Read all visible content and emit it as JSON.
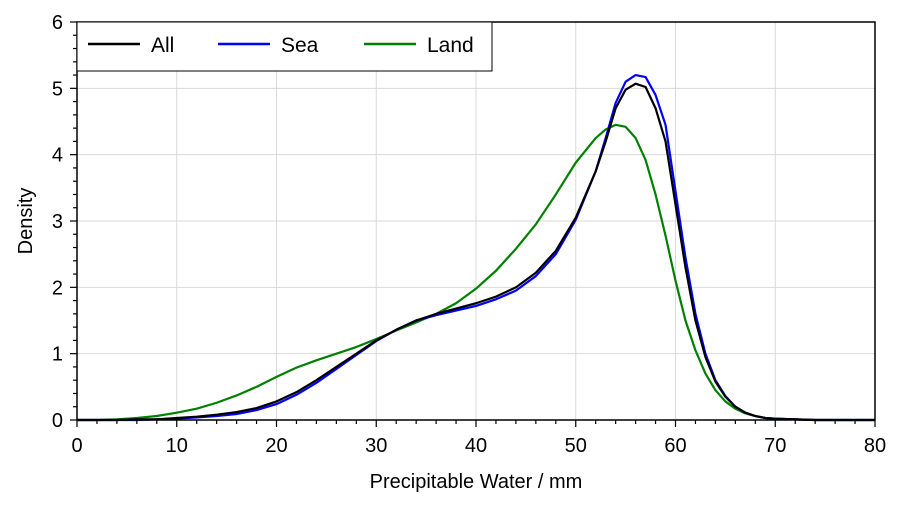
{
  "chart_data": {
    "type": "line",
    "title": "",
    "xlabel": "Precipitable Water / mm",
    "ylabel": "Density",
    "xlim": [
      0,
      80
    ],
    "ylim": [
      0,
      6
    ],
    "xticks": [
      "0",
      "10",
      "20",
      "30",
      "40",
      "50",
      "60",
      "70",
      "80"
    ],
    "yticks": [
      "0",
      "1",
      "2",
      "3",
      "4",
      "5",
      "6"
    ],
    "grid": true,
    "legend": {
      "placement": "top-left"
    },
    "x": [
      0,
      2,
      4,
      6,
      8,
      10,
      12,
      14,
      16,
      18,
      20,
      22,
      24,
      26,
      28,
      30,
      32,
      34,
      36,
      38,
      40,
      42,
      44,
      46,
      48,
      50,
      52,
      53,
      54,
      55,
      56,
      57,
      58,
      59,
      60,
      61,
      62,
      63,
      64,
      65,
      66,
      67,
      68,
      69,
      70,
      72,
      74,
      76,
      78,
      80
    ],
    "series": [
      {
        "name": "All",
        "color": "#000000",
        "values": [
          0.0,
          0.0,
          0.0,
          0.01,
          0.01,
          0.03,
          0.05,
          0.08,
          0.12,
          0.18,
          0.28,
          0.42,
          0.6,
          0.8,
          1.0,
          1.2,
          1.36,
          1.5,
          1.6,
          1.68,
          1.76,
          1.86,
          2.0,
          2.22,
          2.55,
          3.05,
          3.75,
          4.2,
          4.7,
          4.98,
          5.07,
          5.02,
          4.7,
          4.2,
          3.25,
          2.3,
          1.5,
          0.95,
          0.58,
          0.35,
          0.2,
          0.11,
          0.06,
          0.03,
          0.02,
          0.01,
          0.0,
          0.0,
          0.0,
          0.0
        ]
      },
      {
        "name": "Sea",
        "color": "#0000ff",
        "values": [
          0.0,
          0.0,
          0.0,
          0.0,
          0.01,
          0.02,
          0.04,
          0.06,
          0.09,
          0.15,
          0.24,
          0.38,
          0.56,
          0.77,
          0.98,
          1.19,
          1.36,
          1.5,
          1.58,
          1.65,
          1.72,
          1.82,
          1.95,
          2.17,
          2.5,
          3.02,
          3.75,
          4.25,
          4.78,
          5.1,
          5.2,
          5.17,
          4.9,
          4.45,
          3.45,
          2.45,
          1.6,
          1.0,
          0.6,
          0.36,
          0.2,
          0.11,
          0.06,
          0.03,
          0.02,
          0.01,
          0.0,
          0.0,
          0.0,
          0.0
        ]
      },
      {
        "name": "Land",
        "color": "#008000",
        "values": [
          0.0,
          0.0,
          0.01,
          0.03,
          0.06,
          0.11,
          0.17,
          0.26,
          0.37,
          0.5,
          0.65,
          0.79,
          0.9,
          1.0,
          1.1,
          1.22,
          1.35,
          1.47,
          1.6,
          1.76,
          1.98,
          2.25,
          2.58,
          2.95,
          3.4,
          3.88,
          4.25,
          4.38,
          4.45,
          4.42,
          4.25,
          3.92,
          3.4,
          2.78,
          2.1,
          1.5,
          1.05,
          0.7,
          0.45,
          0.28,
          0.17,
          0.1,
          0.06,
          0.03,
          0.02,
          0.01,
          0.0,
          0.0,
          0.0,
          0.0
        ]
      }
    ]
  }
}
